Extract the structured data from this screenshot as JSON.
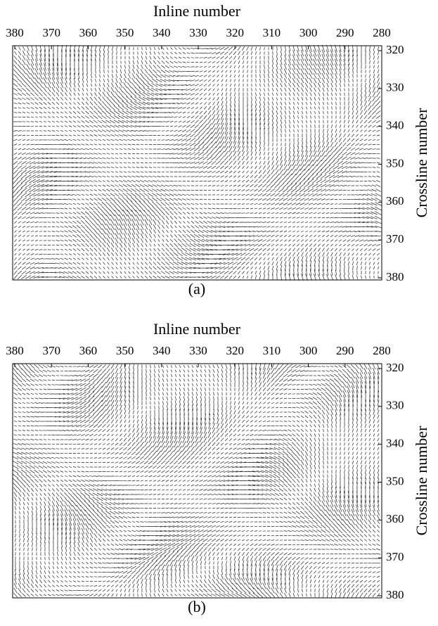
{
  "chart_data": [
    {
      "type": "quiver",
      "title": "Inline number",
      "ylabel": "Crossline number",
      "caption": "(a)",
      "xlim": [
        380,
        280
      ],
      "xticks": [
        380,
        370,
        360,
        350,
        340,
        330,
        320,
        310,
        300,
        290,
        280
      ],
      "ylim": [
        320,
        380
      ],
      "yticks": [
        320,
        330,
        340,
        350,
        360,
        370,
        380
      ]
    },
    {
      "type": "quiver",
      "title": "Inline number",
      "ylabel": "Crossline number",
      "caption": "(b)",
      "xlim": [
        380,
        280
      ],
      "xticks": [
        380,
        370,
        360,
        350,
        340,
        330,
        320,
        310,
        300,
        290,
        280
      ],
      "ylim": [
        320,
        380
      ],
      "yticks": [
        320,
        330,
        340,
        350,
        360,
        370,
        380
      ]
    }
  ]
}
